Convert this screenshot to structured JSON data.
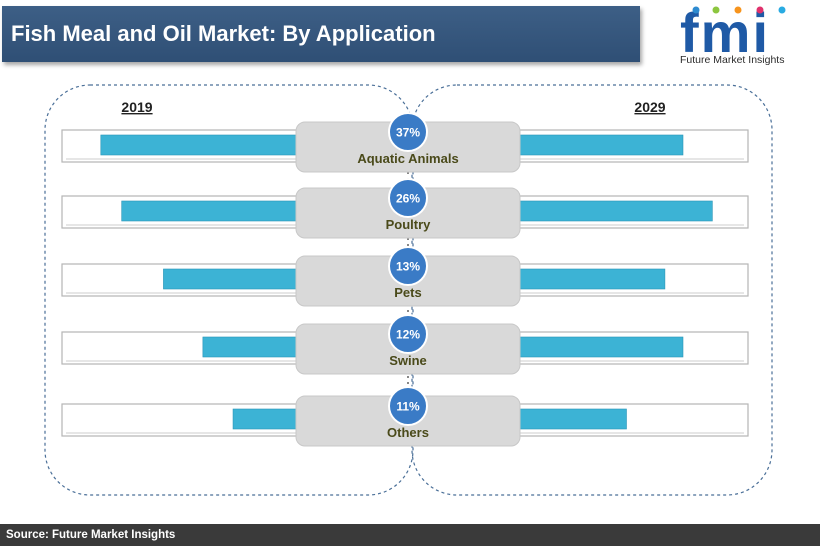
{
  "header": {
    "title": "Fish Meal and Oil Market: By Application"
  },
  "logo": {
    "mark": "fmi",
    "tagline": "Future Market Insights"
  },
  "footer": {
    "source": "Source: Future Market Insights"
  },
  "colors": {
    "bar": "#3cb3d5",
    "circle": "#3a7bc6",
    "label_box": "#d9d9d9",
    "title_bg": "#34557c",
    "logo_blue": "#1f5aa6"
  },
  "chart_data": {
    "type": "bar",
    "left_label": "2019",
    "right_label": "2029",
    "categories": [
      "Aquatic Animals",
      "Poultry",
      "Pets",
      "Swine",
      "Others"
    ],
    "shares": [
      "37%",
      "26%",
      "13%",
      "12%",
      "11%"
    ],
    "series": [
      {
        "name": "2019",
        "values": [
          0.85,
          0.76,
          0.58,
          0.41,
          0.28
        ]
      },
      {
        "name": "2029",
        "values": [
          0.73,
          0.86,
          0.65,
          0.73,
          0.48
        ]
      }
    ]
  }
}
